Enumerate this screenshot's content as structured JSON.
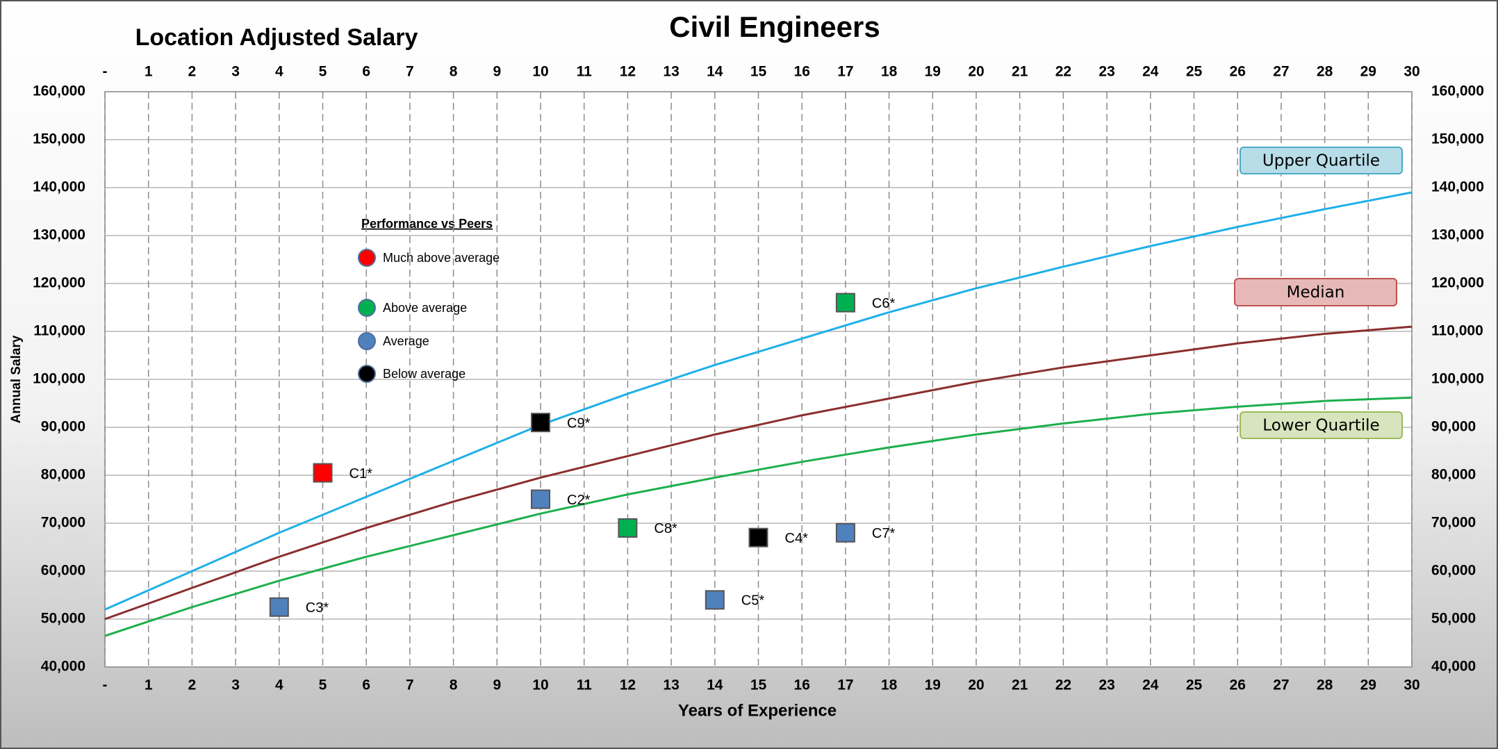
{
  "chart_data": {
    "type": "line",
    "title": "Civil Engineers",
    "subtitle": "Location Adjusted Salary",
    "x_label": "Years of Experience",
    "y_label": "Annual Salary",
    "x": [
      0,
      2,
      4,
      6,
      8,
      10,
      12,
      14,
      16,
      18,
      20,
      22,
      24,
      26,
      28,
      30
    ],
    "series": [
      {
        "name": "Upper Quartile",
        "color": "#1fb0e8",
        "values": [
          52000,
          60000,
          68000,
          75500,
          83000,
          90500,
          97000,
          103000,
          108500,
          114000,
          119000,
          123500,
          127800,
          131800,
          135500,
          139000
        ]
      },
      {
        "name": "Median",
        "color": "#8b2e2e",
        "values": [
          50000,
          56500,
          63000,
          69000,
          74500,
          79500,
          84000,
          88500,
          92500,
          96000,
          99500,
          102500,
          105000,
          107500,
          109500,
          111000
        ]
      },
      {
        "name": "Lower Quartile",
        "color": "#1daf4c",
        "values": [
          46500,
          52500,
          58000,
          63000,
          67500,
          72000,
          76000,
          79500,
          82800,
          85800,
          88500,
          90800,
          92800,
          94300,
          95500,
          96200
        ]
      }
    ],
    "points": {
      "labels": [
        "C1*",
        "C2*",
        "C3*",
        "C4*",
        "C5*",
        "C6*",
        "C7*",
        "C8*",
        "C9*"
      ],
      "x": [
        5,
        10,
        4,
        15,
        14,
        17,
        17,
        12,
        10
      ],
      "values": [
        80500,
        75000,
        52500,
        67000,
        54000,
        116000,
        68000,
        69000,
        91000
      ],
      "colors": [
        "#ff0000",
        "#4f81bd",
        "#4f81bd",
        "#000000",
        "#4f81bd",
        "#00b050",
        "#4f81bd",
        "#00b050",
        "#000000"
      ]
    },
    "legend": {
      "title": "Performance vs Peers",
      "entries": [
        {
          "name": "Much above average",
          "color": "#ff0000"
        },
        {
          "name": "Above average",
          "color": "#00b050"
        },
        {
          "name": "Average",
          "color": "#4f81bd"
        },
        {
          "name": "Below average",
          "color": "#000000"
        }
      ]
    },
    "xlim": [
      0,
      30
    ],
    "xticks": [
      {
        "value": 0,
        "label": "-"
      },
      1,
      2,
      3,
      4,
      5,
      6,
      7,
      8,
      9,
      10,
      11,
      12,
      13,
      14,
      15,
      16,
      17,
      18,
      19,
      20,
      21,
      22,
      23,
      24,
      25,
      26,
      27,
      28,
      29,
      30
    ],
    "ylim": [
      40000,
      160000
    ],
    "yticks": [
      {
        "value": 40000,
        "label": "40,000"
      },
      {
        "value": 50000,
        "label": "50,000"
      },
      {
        "value": 60000,
        "label": "60,000"
      },
      {
        "value": 70000,
        "label": "70,000"
      },
      {
        "value": 80000,
        "label": "80,000"
      },
      {
        "value": 90000,
        "label": "90,000"
      },
      {
        "value": 100000,
        "label": "100,000"
      },
      {
        "value": 110000,
        "label": "110,000"
      },
      {
        "value": 120000,
        "label": "120,000"
      },
      {
        "value": 130000,
        "label": "130,000"
      },
      {
        "value": 140000,
        "label": "140,000"
      },
      {
        "value": 150000,
        "label": "150,000"
      },
      {
        "value": 160000,
        "label": "160,000"
      }
    ],
    "grid": true
  }
}
